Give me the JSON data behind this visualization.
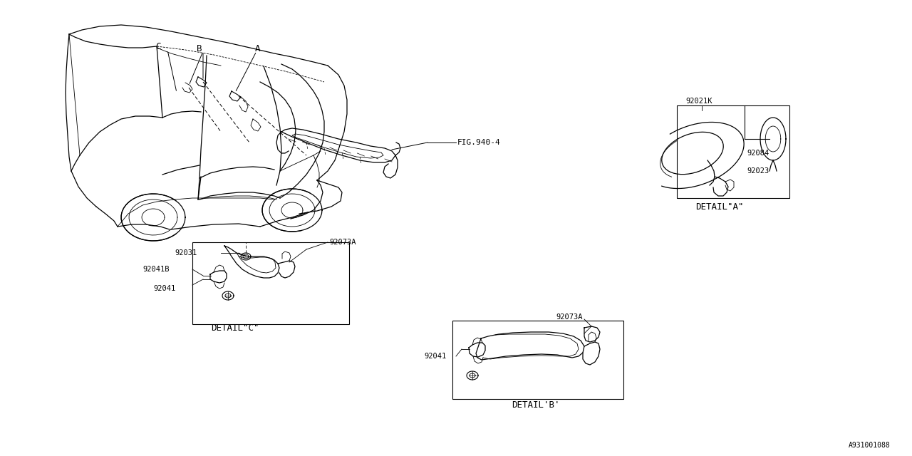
{
  "bg_color": "#ffffff",
  "line_color": "#000000",
  "diagram_id": "A931001088",
  "fig_ref": "FIG.940-4",
  "parts": {
    "detail_a_label": "DETAIL\"A\"",
    "detail_b_label": "DETAIL'B'",
    "detail_c_label": "DETAIL\"C\"",
    "part_92021K": "92021K",
    "part_92084": "92084",
    "part_92023": "92023",
    "part_92031": "92031",
    "part_92041": "92041",
    "part_92041B": "92041B",
    "part_92073A": "92073A",
    "letter_A": "A",
    "letter_B": "B",
    "letter_C": "C"
  },
  "font_size_label": 8,
  "font_size_part": 7.5,
  "font_size_detail": 9,
  "font_size_id": 7
}
